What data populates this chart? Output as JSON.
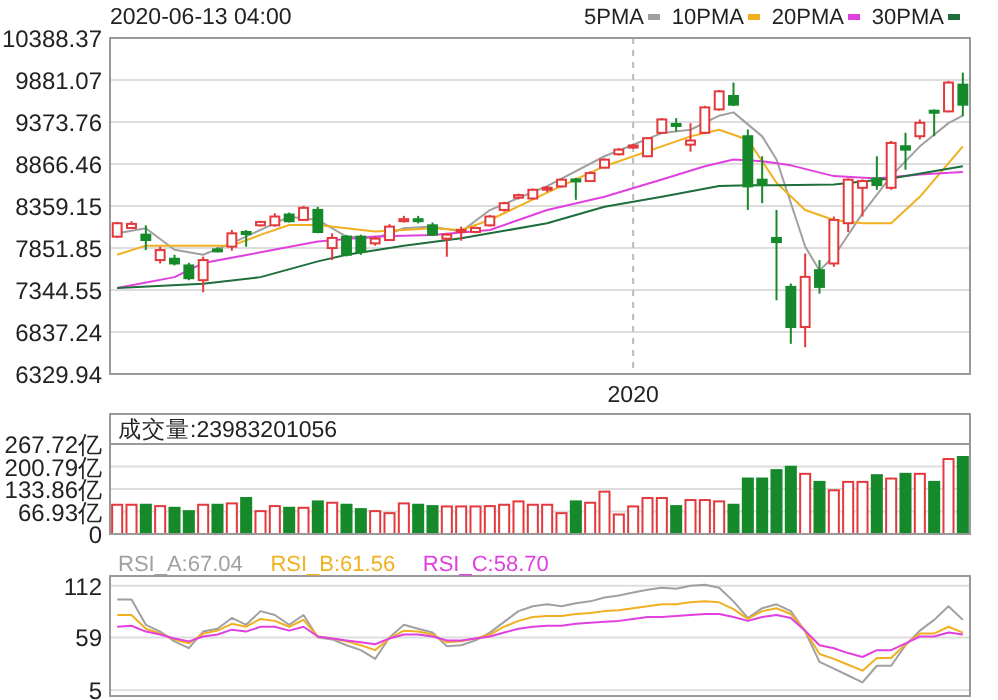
{
  "chart_data": [
    {
      "type": "candlestick",
      "title": "2020-06-13 04:00",
      "categories": [
        null,
        null,
        null,
        null,
        null,
        null,
        null,
        null,
        null,
        null,
        null,
        null,
        null,
        null,
        null,
        null,
        null,
        null,
        null,
        null,
        null,
        null,
        null,
        null,
        null,
        null,
        null,
        null,
        null,
        null,
        null,
        null,
        null,
        null,
        null,
        null,
        "2020",
        null,
        null,
        null,
        null,
        null,
        null,
        null,
        null,
        null,
        null,
        null,
        null,
        null,
        null,
        null,
        null,
        null,
        null,
        null,
        null,
        null,
        null,
        null
      ],
      "ohlc": [
        [
          7989,
          8167,
          7973,
          8151
        ],
        [
          8094,
          8175,
          8094,
          8143
        ],
        [
          8013,
          8126,
          7827,
          7948
        ],
        [
          7706,
          7868,
          7665,
          7827
        ],
        [
          7722,
          7770,
          7641,
          7665
        ],
        [
          7641,
          7673,
          7463,
          7487
        ],
        [
          7463,
          7746,
          7317,
          7706
        ],
        [
          7835,
          7860,
          7800,
          7820
        ],
        [
          7868,
          8070,
          7819,
          8029
        ],
        [
          8045,
          8070,
          7868,
          8035
        ],
        [
          8126,
          8180,
          8110,
          8167
        ],
        [
          8126,
          8272,
          8110,
          8232
        ],
        [
          8256,
          8280,
          8160,
          8175
        ],
        [
          8191,
          8360,
          8180,
          8337
        ],
        [
          8312,
          8350,
          8030,
          8045
        ],
        [
          7851,
          8029,
          7706,
          7973
        ],
        [
          7989,
          8010,
          7750,
          7770
        ],
        [
          7989,
          8013,
          7770,
          7803
        ],
        [
          7908,
          7990,
          7880,
          7965
        ],
        [
          7948,
          8140,
          7940,
          8110
        ],
        [
          8175,
          8240,
          8160,
          8200
        ],
        [
          8200,
          8240,
          8150,
          8180
        ],
        [
          8126,
          8160,
          8000,
          8013
        ],
        [
          7965,
          8030,
          7746,
          8013
        ],
        [
          8050,
          8110,
          7940,
          8070
        ],
        [
          8045,
          8110,
          8030,
          8094
        ],
        [
          8126,
          8250,
          8110,
          8232
        ],
        [
          8312,
          8410,
          8290,
          8393
        ],
        [
          8460,
          8510,
          8440,
          8490
        ],
        [
          8450,
          8570,
          8440,
          8555
        ],
        [
          8560,
          8600,
          8530,
          8580
        ],
        [
          8596,
          8690,
          8580,
          8677
        ],
        [
          8680,
          8700,
          8434,
          8670
        ],
        [
          8660,
          8780,
          8650,
          8757
        ],
        [
          8822,
          8935,
          8810,
          8919
        ],
        [
          8984,
          9060,
          8970,
          9040
        ],
        [
          9065,
          9110,
          9050,
          9090
        ],
        [
          8960,
          9190,
          8950,
          9178
        ],
        [
          9243,
          9420,
          9230,
          9405
        ],
        [
          9350,
          9420,
          9259,
          9335
        ],
        [
          9100,
          9360,
          9016,
          9150
        ],
        [
          9243,
          9570,
          9230,
          9550
        ],
        [
          9526,
          9760,
          9510,
          9744
        ],
        [
          9688,
          9850,
          9566,
          9583
        ],
        [
          9202,
          9283,
          8312,
          8596
        ],
        [
          8677,
          8960,
          8393,
          8612
        ],
        [
          7973,
          8312,
          7220,
          7924
        ],
        [
          7382,
          7422,
          6694,
          6897
        ],
        [
          6897,
          7786,
          6654,
          7503
        ],
        [
          7584,
          7706,
          7301,
          7382
        ],
        [
          7665,
          8232,
          7625,
          8191
        ],
        [
          8151,
          8693,
          8045,
          8677
        ],
        [
          8579,
          8680,
          8232,
          8660
        ],
        [
          8693,
          8960,
          8555,
          8612
        ],
        [
          8579,
          9146,
          8555,
          9121
        ],
        [
          9081,
          9243,
          8798,
          9040
        ],
        [
          9202,
          9405,
          9162,
          9364
        ],
        [
          9510,
          9526,
          9202,
          9490
        ],
        [
          9502,
          9870,
          9490,
          9850
        ],
        [
          9825,
          9970,
          9445,
          9583
        ]
      ],
      "colors": [
        "#e4393c",
        "#e4393c",
        "#168a2a",
        "#e4393c",
        "#168a2a",
        "#168a2a",
        "#e4393c",
        "#168a2a",
        "#e4393c",
        "#168a2a",
        "#e4393c",
        "#e4393c",
        "#168a2a",
        "#e4393c",
        "#168a2a",
        "#e4393c",
        "#168a2a",
        "#168a2a",
        "#e4393c",
        "#e4393c",
        "#e4393c",
        "#168a2a",
        "#168a2a",
        "#e4393c",
        "#e4393c",
        "#e4393c",
        "#e4393c",
        "#e4393c",
        "#e4393c",
        "#e4393c",
        "#e4393c",
        "#e4393c",
        "#168a2a",
        "#e4393c",
        "#e4393c",
        "#e4393c",
        "#e4393c",
        "#e4393c",
        "#e4393c",
        "#168a2a",
        "#e4393c",
        "#e4393c",
        "#e4393c",
        "#168a2a",
        "#168a2a",
        "#168a2a",
        "#168a2a",
        "#168a2a",
        "#e4393c",
        "#168a2a",
        "#e4393c",
        "#e4393c",
        "#e4393c",
        "#168a2a",
        "#e4393c",
        "#168a2a",
        "#e4393c",
        "#168a2a",
        "#e4393c",
        "#168a2a"
      ],
      "series": [
        {
          "name": "5PMA",
          "type": "line",
          "color": "#a0a0a0",
          "values": [
            8030,
            null,
            8090,
            null,
            7830,
            null,
            7770,
            null,
            7910,
            null,
            8070,
            null,
            8230,
            null,
            8190,
            null,
            7990,
            null,
            7970,
            null,
            8090,
            null,
            8110,
            null,
            8050,
            null,
            8310,
            null,
            null,
            null,
            8600,
            null,
            null,
            null,
            8960,
            null,
            null,
            null,
            9240,
            null,
            9280,
            null,
            9450,
            9490,
            null,
            9200,
            8920,
            null,
            7870,
            7580,
            7750,
            null,
            8270,
            null,
            8720,
            null,
            9080,
            null,
            9360,
            9450
          ]
        },
        {
          "name": "10PMA",
          "type": "line",
          "color": "#f0b020",
          "values": [
            7770,
            null,
            7880,
            null,
            7880,
            null,
            7880,
            null,
            7880,
            null,
            8010,
            null,
            8130,
            null,
            8130,
            null,
            8090,
            null,
            8050,
            null,
            8070,
            null,
            8090,
            null,
            8070,
            null,
            8190,
            null,
            null,
            null,
            8520,
            null,
            null,
            null,
            8840,
            null,
            null,
            null,
            9080,
            null,
            9200,
            null,
            9280,
            null,
            9160,
            null,
            8640,
            null,
            8310,
            null,
            8190,
            null,
            8150,
            null,
            8150,
            null,
            8470,
            null,
            null,
            9080
          ]
        },
        {
          "name": "20PMA",
          "type": "line",
          "color": "#e040e0",
          "values": [
            7370,
            null,
            null,
            null,
            7500,
            null,
            7670,
            null,
            null,
            null,
            7800,
            null,
            null,
            null,
            7930,
            null,
            null,
            null,
            7990,
            null,
            null,
            null,
            8010,
            null,
            null,
            null,
            8070,
            null,
            null,
            null,
            8310,
            null,
            null,
            null,
            8470,
            null,
            null,
            null,
            8680,
            null,
            null,
            8840,
            null,
            8920,
            null,
            8900,
            null,
            8850,
            null,
            null,
            8720,
            null,
            null,
            8690,
            null,
            null,
            8740,
            null,
            null,
            8770
          ]
        },
        {
          "name": "30PMA",
          "type": "line",
          "color": "#1e6e3c",
          "values": [
            7370,
            null,
            null,
            null,
            null,
            null,
            7420,
            null,
            null,
            null,
            7500,
            null,
            null,
            null,
            7690,
            null,
            7770,
            null,
            null,
            null,
            7880,
            null,
            null,
            null,
            7970,
            null,
            8030,
            null,
            null,
            null,
            8150,
            null,
            null,
            null,
            8350,
            null,
            null,
            null,
            8470,
            null,
            null,
            null,
            8600,
            null,
            8610,
            null,
            8610,
            null,
            null,
            null,
            8620,
            null,
            null,
            null,
            8690,
            null,
            null,
            null,
            null,
            8840
          ]
        }
      ],
      "ylim": [
        6329.94,
        10388.37
      ],
      "yticks": [
        6329.94,
        6837.24,
        7344.55,
        7851.85,
        8359.15,
        8866.46,
        9373.76,
        9881.07,
        10388.37
      ],
      "grid": true,
      "legend": "top right"
    },
    {
      "type": "bar",
      "title": "成交量:23983201056",
      "categories": [
        null,
        null,
        null,
        null,
        null,
        null,
        null,
        null,
        null,
        null,
        null,
        null,
        null,
        null,
        null,
        null,
        null,
        null,
        null,
        null,
        null,
        null,
        null,
        null,
        null,
        null,
        null,
        null,
        null,
        null,
        null,
        null,
        null,
        null,
        null,
        null,
        null,
        null,
        null,
        null,
        null,
        null,
        null,
        null,
        null,
        null,
        null,
        null,
        null,
        null,
        null,
        null,
        null,
        null,
        null,
        null,
        null,
        null,
        null,
        null
      ],
      "values": [
        87,
        87,
        87,
        83,
        78,
        68,
        87,
        87,
        91,
        107,
        68,
        83,
        78,
        78,
        97,
        93,
        87,
        74,
        68,
        62,
        91,
        87,
        83,
        82,
        82,
        82,
        83,
        87,
        97,
        87,
        87,
        62,
        97,
        93,
        126,
        58,
        82,
        107,
        107,
        83,
        101,
        101,
        97,
        87,
        165,
        165,
        190,
        200,
        179,
        155,
        130,
        155,
        155,
        175,
        165,
        179,
        179,
        155,
        223,
        229
      ],
      "colors": [
        "#e4393c",
        "#e4393c",
        "#168a2a",
        "#e4393c",
        "#168a2a",
        "#168a2a",
        "#e4393c",
        "#168a2a",
        "#e4393c",
        "#168a2a",
        "#e4393c",
        "#e4393c",
        "#168a2a",
        "#e4393c",
        "#168a2a",
        "#e4393c",
        "#168a2a",
        "#168a2a",
        "#e4393c",
        "#e4393c",
        "#e4393c",
        "#168a2a",
        "#168a2a",
        "#e4393c",
        "#e4393c",
        "#e4393c",
        "#e4393c",
        "#e4393c",
        "#e4393c",
        "#e4393c",
        "#e4393c",
        "#e4393c",
        "#168a2a",
        "#e4393c",
        "#e4393c",
        "#e4393c",
        "#e4393c",
        "#e4393c",
        "#e4393c",
        "#168a2a",
        "#e4393c",
        "#e4393c",
        "#e4393c",
        "#168a2a",
        "#168a2a",
        "#168a2a",
        "#168a2a",
        "#168a2a",
        "#e4393c",
        "#168a2a",
        "#e4393c",
        "#e4393c",
        "#e4393c",
        "#168a2a",
        "#e4393c",
        "#168a2a",
        "#e4393c",
        "#168a2a",
        "#e4393c",
        "#168a2a"
      ],
      "ylim": [
        0,
        267.72
      ],
      "yticks": [
        0,
        {
          "value": 66.93,
          "label": "66.93亿"
        },
        {
          "value": 133.86,
          "label": "133.86亿"
        },
        {
          "value": 200.79,
          "label": "200.79亿"
        },
        {
          "value": 267.72,
          "label": "267.72亿"
        }
      ],
      "grid": true,
      "tick_labels": "y"
    },
    {
      "type": "line",
      "categories": [
        null,
        null,
        null,
        null,
        null,
        null,
        null,
        null,
        null,
        null,
        null,
        null,
        null,
        null,
        null,
        null,
        null,
        null,
        null,
        null,
        null,
        null,
        null,
        null,
        null,
        null,
        null,
        null,
        null,
        null,
        null,
        null,
        null,
        null,
        null,
        null,
        null,
        null,
        null,
        null,
        null,
        null,
        null,
        null,
        null,
        null,
        null,
        null,
        null,
        null,
        null,
        null,
        null,
        null,
        null,
        null,
        null,
        null,
        null,
        null
      ],
      "series": [
        {
          "name": "RSI_A:67.04",
          "color": "#a0a0a0",
          "values": [
            98,
            98,
            72,
            65,
            55,
            48,
            65,
            68,
            79,
            72,
            86,
            82,
            72,
            82,
            59,
            57,
            51,
            46,
            37,
            59,
            72,
            68,
            64,
            50,
            51,
            56,
            64,
            75,
            86,
            91,
            93,
            91,
            94,
            96,
            100,
            102,
            105,
            108,
            110,
            109,
            112,
            113,
            110,
            96,
            79,
            89,
            93,
            86,
            65,
            34,
            27,
            20,
            13,
            30,
            30,
            51,
            66,
            77,
            91,
            77
          ]
        },
        {
          "name": "RSI_B:61.56",
          "color": "#f0b020",
          "values": [
            82,
            82,
            68,
            63,
            57,
            53,
            63,
            66,
            73,
            70,
            78,
            76,
            70,
            77,
            60,
            58,
            55,
            51,
            46,
            58,
            66,
            65,
            62,
            54,
            55,
            58,
            62,
            70,
            76,
            80,
            81,
            81,
            83,
            84,
            86,
            87,
            89,
            91,
            93,
            93,
            95,
            96,
            95,
            88,
            78,
            86,
            89,
            83,
            66,
            42,
            37,
            31,
            25,
            38,
            38,
            52,
            63,
            63,
            70,
            64
          ]
        },
        {
          "name": "RSI_C:58.70",
          "color": "#e040e0",
          "values": [
            70,
            71,
            65,
            62,
            58,
            55,
            60,
            62,
            67,
            65,
            70,
            70,
            66,
            70,
            60,
            58,
            56,
            54,
            52,
            58,
            62,
            62,
            60,
            56,
            56,
            58,
            60,
            64,
            68,
            70,
            71,
            71,
            73,
            74,
            75,
            76,
            78,
            80,
            80,
            81,
            82,
            83,
            83,
            80,
            76,
            80,
            82,
            79,
            66,
            51,
            48,
            43,
            39,
            46,
            46,
            53,
            60,
            60,
            64,
            62
          ]
        }
      ],
      "ylim": [
        -1,
        122
      ],
      "yticks": [
        5,
        59,
        112
      ],
      "grid": true,
      "tick_labels": "y",
      "legend": "top left"
    }
  ]
}
